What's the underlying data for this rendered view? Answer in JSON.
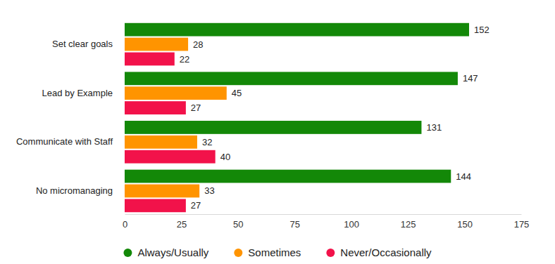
{
  "chart_data": {
    "type": "bar",
    "orientation": "horizontal",
    "categories": [
      "Set clear goals",
      "Lead by Example",
      "Communicate with Staff",
      "No micromanaging"
    ],
    "series": [
      {
        "name": "Always/Usually",
        "color": "#138808",
        "values": [
          152,
          147,
          131,
          144
        ]
      },
      {
        "name": "Sometimes",
        "color": "#ff9400",
        "values": [
          28,
          45,
          32,
          33
        ]
      },
      {
        "name": "Never/Occasionally",
        "color": "#f2124a",
        "values": [
          22,
          27,
          40,
          27
        ]
      }
    ],
    "xlim": [
      0,
      175
    ],
    "xticks": [
      0,
      25,
      50,
      75,
      100,
      125,
      150,
      175
    ],
    "data_labels": true,
    "legend": "bottom"
  }
}
